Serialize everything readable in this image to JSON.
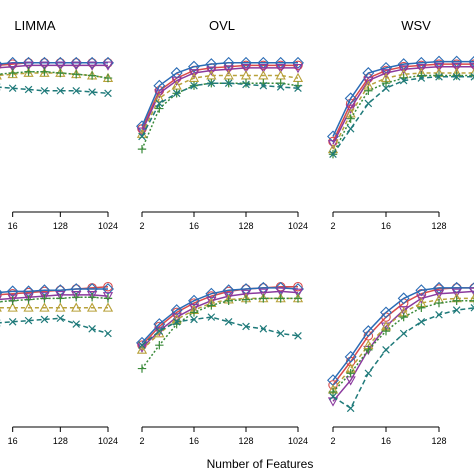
{
  "figure": {
    "xlabel": "Number of Features"
  },
  "chart_data": [
    {
      "type": "line",
      "title": "LIMMA",
      "row": "top",
      "x": [
        2,
        4,
        8,
        16,
        32,
        64,
        128,
        256,
        512,
        1024
      ],
      "x_ticks": [
        "16",
        "128",
        "1024"
      ],
      "x_scale": "log2",
      "series": [
        {
          "marker": "circle",
          "color": "#d94a4a",
          "dash": "",
          "values": [
            0.83,
            0.84,
            0.85,
            0.855,
            0.86,
            0.86,
            0.86,
            0.86,
            0.86,
            0.86
          ]
        },
        {
          "marker": "diamond",
          "color": "#2b6cb5",
          "dash": "",
          "values": [
            0.84,
            0.85,
            0.855,
            0.86,
            0.86,
            0.86,
            0.86,
            0.86,
            0.86,
            0.86
          ]
        },
        {
          "marker": "inv-triangle",
          "color": "#8b3a9e",
          "dash": "",
          "values": [
            0.82,
            0.83,
            0.84,
            0.845,
            0.85,
            0.85,
            0.85,
            0.85,
            0.85,
            0.85
          ]
        },
        {
          "marker": "triangle",
          "color": "#b8a13a",
          "dash": "4,3",
          "values": [
            0.79,
            0.8,
            0.81,
            0.815,
            0.82,
            0.82,
            0.82,
            0.815,
            0.81,
            0.8
          ]
        },
        {
          "marker": "plus",
          "color": "#3a8a3a",
          "dash": "2,2",
          "values": [
            0.8,
            0.81,
            0.815,
            0.82,
            0.825,
            0.825,
            0.82,
            0.815,
            0.81,
            0.8
          ]
        },
        {
          "marker": "x",
          "color": "#1f7a7a",
          "dash": "5,3",
          "values": [
            0.78,
            0.77,
            0.765,
            0.76,
            0.755,
            0.75,
            0.75,
            0.75,
            0.745,
            0.74
          ]
        }
      ]
    },
    {
      "type": "line",
      "title": "OVL",
      "row": "top",
      "x": [
        2,
        4,
        8,
        16,
        32,
        64,
        128,
        256,
        512,
        1024
      ],
      "x_ticks": [
        "2",
        "16",
        "128",
        "1024"
      ],
      "x_scale": "log2",
      "series": [
        {
          "marker": "circle",
          "color": "#d94a4a",
          "dash": "",
          "values": [
            0.6,
            0.75,
            0.8,
            0.83,
            0.84,
            0.845,
            0.85,
            0.85,
            0.85,
            0.85
          ]
        },
        {
          "marker": "diamond",
          "color": "#2b6cb5",
          "dash": "",
          "values": [
            0.61,
            0.77,
            0.82,
            0.845,
            0.855,
            0.86,
            0.86,
            0.86,
            0.86,
            0.86
          ]
        },
        {
          "marker": "inv-triangle",
          "color": "#8b3a9e",
          "dash": "",
          "values": [
            0.59,
            0.74,
            0.79,
            0.82,
            0.83,
            0.835,
            0.84,
            0.84,
            0.84,
            0.84
          ]
        },
        {
          "marker": "triangle",
          "color": "#b8a13a",
          "dash": "4,3",
          "values": [
            0.58,
            0.72,
            0.77,
            0.8,
            0.81,
            0.81,
            0.81,
            0.81,
            0.81,
            0.8
          ]
        },
        {
          "marker": "plus",
          "color": "#3a8a3a",
          "dash": "2,2",
          "values": [
            0.52,
            0.68,
            0.74,
            0.77,
            0.78,
            0.78,
            0.78,
            0.78,
            0.78,
            0.77
          ]
        },
        {
          "marker": "x",
          "color": "#1f7a7a",
          "dash": "5,3",
          "values": [
            0.57,
            0.7,
            0.74,
            0.77,
            0.78,
            0.78,
            0.775,
            0.77,
            0.765,
            0.76
          ]
        }
      ]
    },
    {
      "type": "line",
      "title": "WSV",
      "row": "top",
      "x": [
        2,
        4,
        8,
        16,
        32,
        64,
        128,
        256,
        512,
        1024
      ],
      "x_ticks": [
        "2",
        "16",
        "128"
      ],
      "x_scale": "log2",
      "series": [
        {
          "marker": "circle",
          "color": "#d94a4a",
          "dash": "",
          "values": [
            0.55,
            0.7,
            0.8,
            0.83,
            0.845,
            0.85,
            0.855,
            0.855,
            0.855,
            0.855
          ]
        },
        {
          "marker": "diamond",
          "color": "#2b6cb5",
          "dash": "",
          "values": [
            0.57,
            0.72,
            0.82,
            0.84,
            0.855,
            0.86,
            0.865,
            0.865,
            0.865,
            0.865
          ]
        },
        {
          "marker": "inv-triangle",
          "color": "#8b3a9e",
          "dash": "",
          "values": [
            0.54,
            0.68,
            0.79,
            0.82,
            0.835,
            0.84,
            0.845,
            0.845,
            0.845,
            0.845
          ]
        },
        {
          "marker": "triangle",
          "color": "#b8a13a",
          "dash": "4,3",
          "values": [
            0.52,
            0.66,
            0.77,
            0.8,
            0.815,
            0.82,
            0.82,
            0.82,
            0.82,
            0.82
          ]
        },
        {
          "marker": "plus",
          "color": "#3a8a3a",
          "dash": "2,2",
          "values": [
            0.5,
            0.64,
            0.75,
            0.78,
            0.8,
            0.81,
            0.81,
            0.81,
            0.81,
            0.81
          ]
        },
        {
          "marker": "x",
          "color": "#1f7a7a",
          "dash": "5,3",
          "values": [
            0.5,
            0.6,
            0.7,
            0.76,
            0.79,
            0.8,
            0.805,
            0.805,
            0.805,
            0.805
          ]
        }
      ]
    },
    {
      "type": "line",
      "title": "",
      "row": "bottom",
      "x": [
        2,
        4,
        8,
        16,
        32,
        64,
        128,
        256,
        512,
        1024
      ],
      "x_ticks": [
        "16",
        "128",
        "1024"
      ],
      "x_scale": "log2",
      "series": [
        {
          "marker": "circle",
          "color": "#d94a4a",
          "dash": "",
          "values": [
            0.82,
            0.83,
            0.835,
            0.84,
            0.845,
            0.85,
            0.855,
            0.86,
            0.865,
            0.87
          ]
        },
        {
          "marker": "diamond",
          "color": "#2b6cb5",
          "dash": "",
          "values": [
            0.83,
            0.84,
            0.845,
            0.85,
            0.85,
            0.855,
            0.855,
            0.86,
            0.86,
            0.86
          ]
        },
        {
          "marker": "inv-triangle",
          "color": "#8b3a9e",
          "dash": "",
          "values": [
            0.8,
            0.81,
            0.815,
            0.82,
            0.825,
            0.83,
            0.835,
            0.835,
            0.835,
            0.83
          ]
        },
        {
          "marker": "triangle",
          "color": "#b8a13a",
          "dash": "4,3",
          "values": [
            0.77,
            0.775,
            0.78,
            0.78,
            0.78,
            0.78,
            0.78,
            0.78,
            0.78,
            0.78
          ]
        },
        {
          "marker": "plus",
          "color": "#3a8a3a",
          "dash": "2,2",
          "values": [
            0.79,
            0.8,
            0.805,
            0.81,
            0.815,
            0.82,
            0.82,
            0.825,
            0.825,
            0.82
          ]
        },
        {
          "marker": "x",
          "color": "#1f7a7a",
          "dash": "5,3",
          "values": [
            0.7,
            0.71,
            0.715,
            0.72,
            0.725,
            0.73,
            0.735,
            0.71,
            0.69,
            0.67
          ]
        }
      ]
    },
    {
      "type": "line",
      "title": "",
      "row": "bottom",
      "x": [
        2,
        4,
        8,
        16,
        32,
        64,
        128,
        256,
        512,
        1024
      ],
      "x_ticks": [
        "2",
        "16",
        "128",
        "1024"
      ],
      "x_scale": "log2",
      "series": [
        {
          "marker": "circle",
          "color": "#d94a4a",
          "dash": "",
          "values": [
            0.62,
            0.7,
            0.76,
            0.8,
            0.83,
            0.85,
            0.86,
            0.865,
            0.87,
            0.87
          ]
        },
        {
          "marker": "diamond",
          "color": "#2b6cb5",
          "dash": "",
          "values": [
            0.63,
            0.71,
            0.77,
            0.81,
            0.84,
            0.855,
            0.86,
            0.865,
            0.865,
            0.86
          ]
        },
        {
          "marker": "inv-triangle",
          "color": "#8b3a9e",
          "dash": "",
          "values": [
            0.61,
            0.68,
            0.74,
            0.78,
            0.81,
            0.83,
            0.84,
            0.845,
            0.85,
            0.845
          ]
        },
        {
          "marker": "triangle",
          "color": "#b8a13a",
          "dash": "4,3",
          "values": [
            0.6,
            0.67,
            0.73,
            0.77,
            0.8,
            0.815,
            0.82,
            0.82,
            0.82,
            0.82
          ]
        },
        {
          "marker": "plus",
          "color": "#3a8a3a",
          "dash": "2,2",
          "values": [
            0.52,
            0.62,
            0.71,
            0.76,
            0.79,
            0.81,
            0.815,
            0.82,
            0.82,
            0.82
          ]
        },
        {
          "marker": "x",
          "color": "#1f7a7a",
          "dash": "5,3",
          "values": [
            0.62,
            0.68,
            0.72,
            0.73,
            0.74,
            0.72,
            0.7,
            0.69,
            0.67,
            0.66
          ]
        }
      ]
    },
    {
      "type": "line",
      "title": "",
      "row": "bottom",
      "x": [
        2,
        4,
        8,
        16,
        32,
        64,
        128,
        256,
        512,
        1024
      ],
      "x_ticks": [
        "2",
        "16",
        "128"
      ],
      "x_scale": "log2",
      "series": [
        {
          "marker": "circle",
          "color": "#d94a4a",
          "dash": "",
          "values": [
            0.45,
            0.55,
            0.66,
            0.74,
            0.8,
            0.84,
            0.86,
            0.865,
            0.865,
            0.865
          ]
        },
        {
          "marker": "diamond",
          "color": "#2b6cb5",
          "dash": "",
          "values": [
            0.47,
            0.57,
            0.68,
            0.76,
            0.82,
            0.855,
            0.865,
            0.865,
            0.865,
            0.865
          ]
        },
        {
          "marker": "inv-triangle",
          "color": "#8b3a9e",
          "dash": "",
          "values": [
            0.38,
            0.47,
            0.6,
            0.7,
            0.77,
            0.82,
            0.84,
            0.845,
            0.85,
            0.85
          ]
        },
        {
          "marker": "triangle",
          "color": "#b8a13a",
          "dash": "4,3",
          "values": [
            0.43,
            0.52,
            0.62,
            0.7,
            0.76,
            0.8,
            0.815,
            0.82,
            0.82,
            0.82
          ]
        },
        {
          "marker": "plus",
          "color": "#3a8a3a",
          "dash": "2,2",
          "values": [
            0.42,
            0.5,
            0.6,
            0.68,
            0.74,
            0.78,
            0.8,
            0.81,
            0.81,
            0.81
          ]
        },
        {
          "marker": "x",
          "color": "#1f7a7a",
          "dash": "5,3",
          "values": [
            0.4,
            0.35,
            0.5,
            0.6,
            0.67,
            0.72,
            0.75,
            0.77,
            0.78,
            0.78
          ]
        }
      ]
    }
  ]
}
